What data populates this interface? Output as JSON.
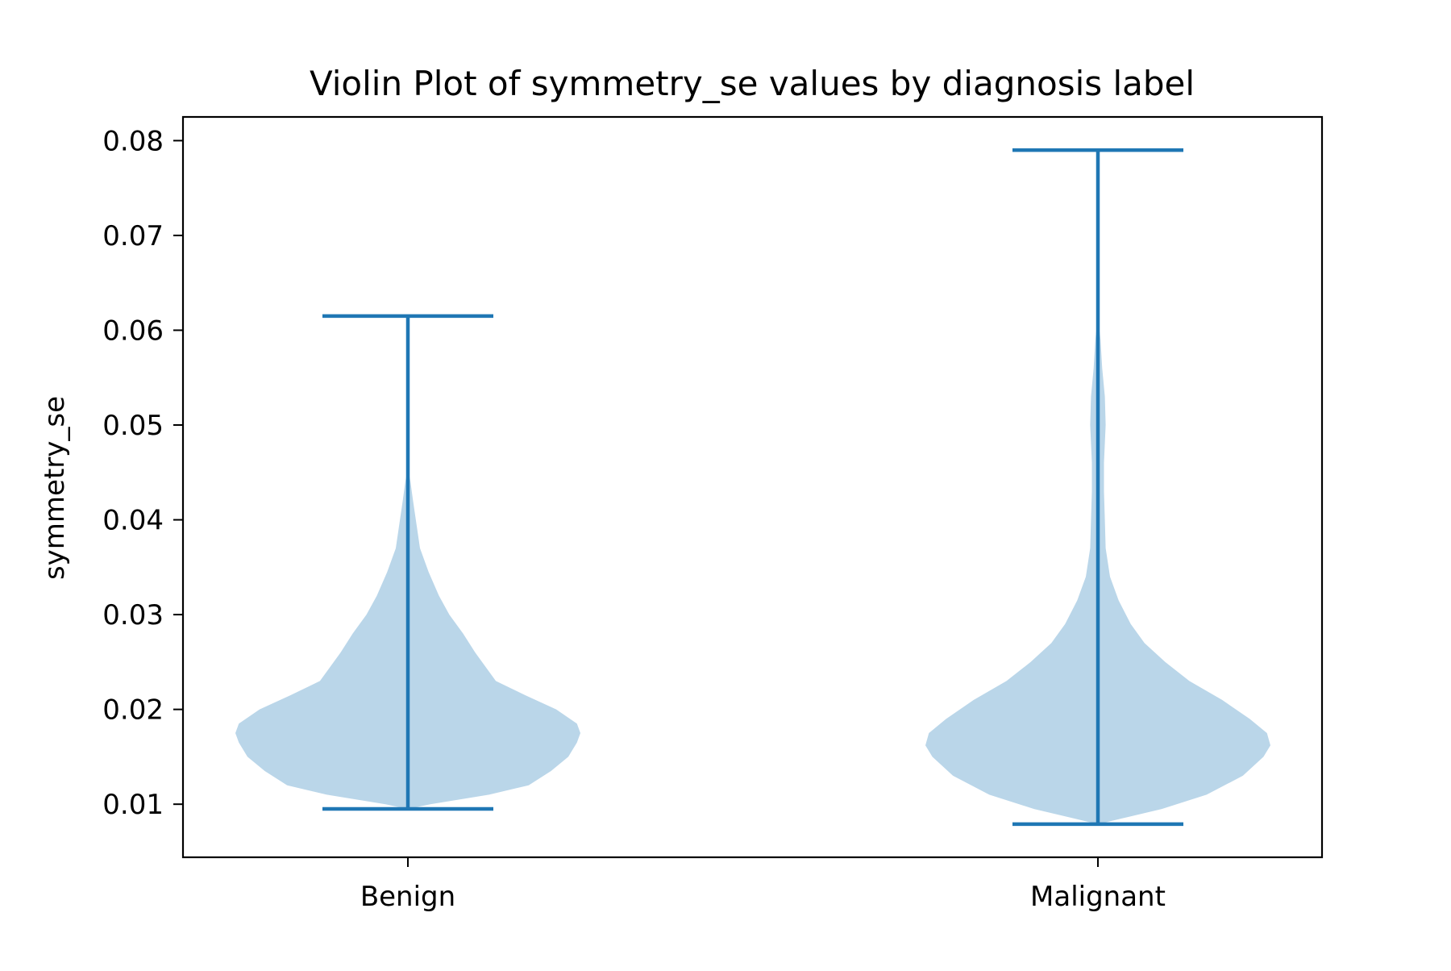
{
  "chart_data": {
    "type": "violin",
    "title": "Violin Plot of symmetry_se values by diagnosis label",
    "xlabel": "",
    "ylabel": "symmetry_se",
    "categories": [
      "Benign",
      "Malignant"
    ],
    "ylim": [
      0.0044,
      0.0825
    ],
    "yticks": [
      0.01,
      0.02,
      0.03,
      0.04,
      0.05,
      0.06,
      0.07,
      0.08
    ],
    "ytick_labels": [
      "0.01",
      "0.02",
      "0.03",
      "0.04",
      "0.05",
      "0.06",
      "0.07",
      "0.08"
    ],
    "grid": false,
    "colors": {
      "body": "#bad6e9",
      "lines": "#1f77b4",
      "axis": "#000000"
    },
    "violins": [
      {
        "label": "Benign",
        "min": 0.0095,
        "max": 0.0615,
        "density": [
          [
            0.0095,
            0.0
          ],
          [
            0.01,
            0.13
          ],
          [
            0.011,
            0.47
          ],
          [
            0.012,
            0.7
          ],
          [
            0.0135,
            0.83
          ],
          [
            0.015,
            0.93
          ],
          [
            0.0165,
            0.98
          ],
          [
            0.0175,
            1.0
          ],
          [
            0.0185,
            0.98
          ],
          [
            0.02,
            0.86
          ],
          [
            0.0215,
            0.68
          ],
          [
            0.023,
            0.51
          ],
          [
            0.0245,
            0.45
          ],
          [
            0.026,
            0.39
          ],
          [
            0.028,
            0.32
          ],
          [
            0.03,
            0.24
          ],
          [
            0.032,
            0.18
          ],
          [
            0.0345,
            0.12
          ],
          [
            0.037,
            0.07
          ],
          [
            0.0395,
            0.05
          ],
          [
            0.042,
            0.03
          ],
          [
            0.044,
            0.015
          ],
          [
            0.0455,
            0.0
          ]
        ]
      },
      {
        "label": "Malignant",
        "min": 0.0079,
        "max": 0.079,
        "density": [
          [
            0.0079,
            0.0
          ],
          [
            0.0085,
            0.14
          ],
          [
            0.0095,
            0.37
          ],
          [
            0.011,
            0.63
          ],
          [
            0.013,
            0.84
          ],
          [
            0.015,
            0.96
          ],
          [
            0.0162,
            1.0
          ],
          [
            0.0175,
            0.98
          ],
          [
            0.019,
            0.88
          ],
          [
            0.021,
            0.72
          ],
          [
            0.023,
            0.53
          ],
          [
            0.025,
            0.39
          ],
          [
            0.027,
            0.27
          ],
          [
            0.029,
            0.19
          ],
          [
            0.0315,
            0.12
          ],
          [
            0.034,
            0.07
          ],
          [
            0.037,
            0.045
          ],
          [
            0.04,
            0.04
          ],
          [
            0.043,
            0.035
          ],
          [
            0.046,
            0.035
          ],
          [
            0.05,
            0.045
          ],
          [
            0.053,
            0.04
          ],
          [
            0.056,
            0.025
          ],
          [
            0.059,
            0.015
          ],
          [
            0.0615,
            0.0
          ]
        ]
      }
    ]
  }
}
